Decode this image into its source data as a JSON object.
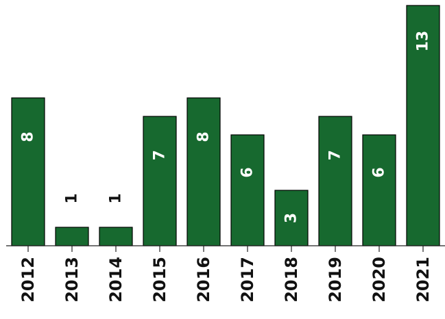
{
  "chart_data": {
    "type": "bar",
    "title": "",
    "xlabel": "",
    "ylabel": "",
    "categories": [
      "2012",
      "2013",
      "2014",
      "2015",
      "2016",
      "2017",
      "2018",
      "2019",
      "2020",
      "2021"
    ],
    "values": [
      8,
      1,
      1,
      7,
      8,
      6,
      3,
      7,
      6,
      13
    ],
    "ylim": [
      0,
      13
    ],
    "grid": false,
    "legend": "none",
    "bar_color": "#17692f",
    "label_color_inside": "#ffffff",
    "label_color_outside": "#111111",
    "tick_label_orientation": "vertical",
    "data_label_orientation": "vertical"
  }
}
